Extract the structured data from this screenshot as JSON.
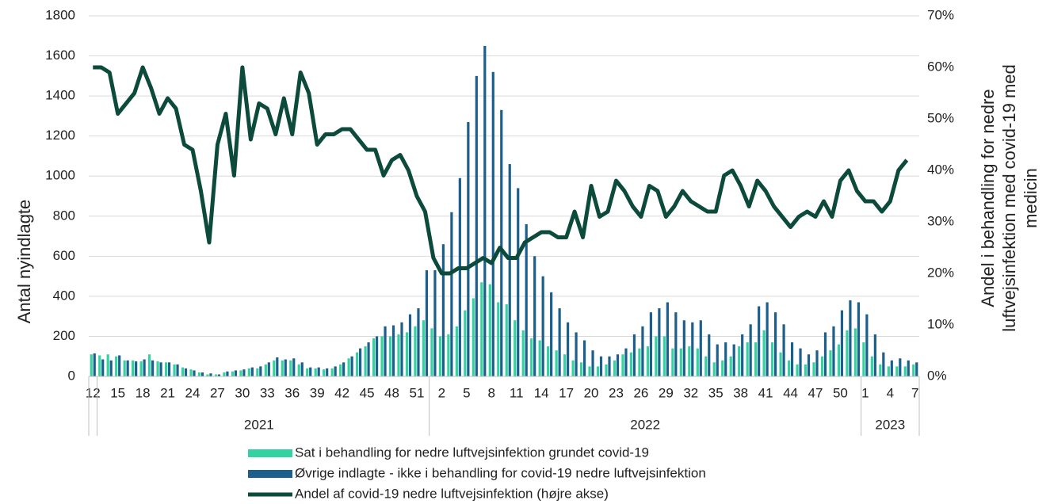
{
  "chart_data": {
    "type": "bar",
    "ylabel": "Antal nyindlagte",
    "y2label": [
      "Andel i behandling for nedre",
      "luftvejsinfektion med covid-19 med",
      "medicin"
    ],
    "categories": [
      "12",
      null,
      null,
      "15",
      null,
      null,
      "18",
      null,
      null,
      "21",
      null,
      null,
      "24",
      null,
      null,
      "27",
      null,
      null,
      "30",
      null,
      null,
      "33",
      null,
      null,
      "36",
      null,
      null,
      "39",
      null,
      null,
      "42",
      null,
      null,
      "45",
      null,
      null,
      "48",
      null,
      null,
      "51",
      null,
      null,
      "2",
      null,
      null,
      "5",
      null,
      null,
      "8",
      null,
      null,
      "11",
      null,
      null,
      "14",
      null,
      null,
      "17",
      null,
      null,
      "20",
      null,
      null,
      "23",
      null,
      null,
      "26",
      null,
      null,
      "29",
      null,
      null,
      "32",
      null,
      null,
      "35",
      null,
      null,
      "38",
      null,
      null,
      "41",
      null,
      null,
      "44",
      null,
      null,
      "47",
      null,
      null,
      "50",
      null,
      null,
      "1",
      null,
      null,
      "4",
      null,
      null,
      "7"
    ],
    "category_groups": [
      {
        "label": "2021",
        "size": 41
      },
      {
        "label": "2022",
        "size": 52
      },
      {
        "label": "2023",
        "size": 7
      }
    ],
    "series": [
      {
        "name": "Sat i behandling for nedre luftvejsinfektion grundet covid-19",
        "type": "bar",
        "color": "#33d3a1",
        "values": [
          110,
          105,
          110,
          100,
          80,
          80,
          75,
          110,
          75,
          70,
          60,
          45,
          35,
          20,
          10,
          10,
          20,
          25,
          30,
          40,
          40,
          60,
          80,
          80,
          80,
          60,
          40,
          40,
          35,
          40,
          60,
          90,
          120,
          150,
          190,
          200,
          200,
          210,
          220,
          250,
          280,
          240,
          200,
          210,
          250,
          330,
          390,
          470,
          460,
          370,
          360,
          280,
          230,
          190,
          180,
          150,
          130,
          110,
          80,
          70,
          50,
          50,
          60,
          80,
          110,
          120,
          140,
          150,
          200,
          200,
          140,
          140,
          150,
          140,
          100,
          70,
          80,
          100,
          150,
          170,
          170,
          230,
          170,
          120,
          80,
          60,
          60,
          70,
          100,
          130,
          160,
          230,
          240,
          170,
          100,
          60,
          50,
          50,
          50,
          60
        ]
      },
      {
        "name": "Øvrige indlagte - ikke i behandling for covid-19 nedre luftvejsinfektion",
        "type": "bar",
        "color": "#1c5f8c",
        "values": [
          115,
          85,
          80,
          105,
          80,
          75,
          85,
          80,
          70,
          70,
          60,
          40,
          30,
          20,
          15,
          10,
          25,
          30,
          35,
          45,
          50,
          70,
          95,
          85,
          90,
          70,
          45,
          45,
          40,
          50,
          70,
          100,
          140,
          170,
          200,
          250,
          255,
          270,
          310,
          340,
          530,
          530,
          660,
          820,
          990,
          1270,
          1500,
          1650,
          1520,
          1330,
          1060,
          940,
          760,
          600,
          500,
          420,
          340,
          270,
          220,
          180,
          130,
          100,
          100,
          110,
          140,
          210,
          250,
          320,
          340,
          370,
          320,
          280,
          270,
          280,
          210,
          160,
          170,
          160,
          210,
          260,
          350,
          370,
          320,
          260,
          170,
          140,
          110,
          130,
          220,
          250,
          330,
          380,
          370,
          310,
          210,
          120,
          80,
          90,
          80,
          70
        ]
      },
      {
        "name": "Andel af covid-19 nedre luftvejsinfektion (højre akse)",
        "type": "line",
        "axis": "y2",
        "color": "#0c4a3b",
        "values": [
          60,
          60,
          59,
          51,
          53,
          55,
          60,
          56,
          51,
          54,
          52,
          45,
          44,
          36,
          26,
          45,
          51,
          39,
          60,
          46,
          53,
          52,
          47,
          54,
          47,
          59,
          55,
          45,
          47,
          47,
          48,
          48,
          46,
          44,
          44,
          39,
          42,
          43,
          40,
          35,
          32,
          23,
          20,
          20,
          21,
          21,
          22,
          23,
          22,
          25,
          23,
          23,
          26,
          27,
          28,
          28,
          27,
          27,
          32,
          27,
          37,
          31,
          32,
          38,
          36,
          33,
          31,
          37,
          36,
          31,
          33,
          36,
          34,
          33,
          32,
          32,
          39,
          40,
          37,
          33,
          38,
          36,
          33,
          31,
          29,
          31,
          32,
          31,
          34,
          31,
          38,
          40,
          36,
          34,
          34,
          32,
          34,
          40,
          42,
          null
        ]
      }
    ],
    "ylim": [
      0,
      1800
    ],
    "yticks": [
      0,
      200,
      400,
      600,
      800,
      1000,
      1200,
      1400,
      1600,
      1800
    ],
    "y2lim": [
      0,
      70
    ],
    "y2ticks": [
      {
        "value": 0,
        "label": "0%"
      },
      {
        "value": 10,
        "label": "10%"
      },
      {
        "value": 20,
        "label": "20%"
      },
      {
        "value": 30,
        "label": "30%"
      },
      {
        "value": 40,
        "label": "40%"
      },
      {
        "value": 50,
        "label": "50%"
      },
      {
        "value": 60,
        "label": "60%"
      },
      {
        "value": 70,
        "label": "70%"
      }
    ],
    "grid": true
  }
}
